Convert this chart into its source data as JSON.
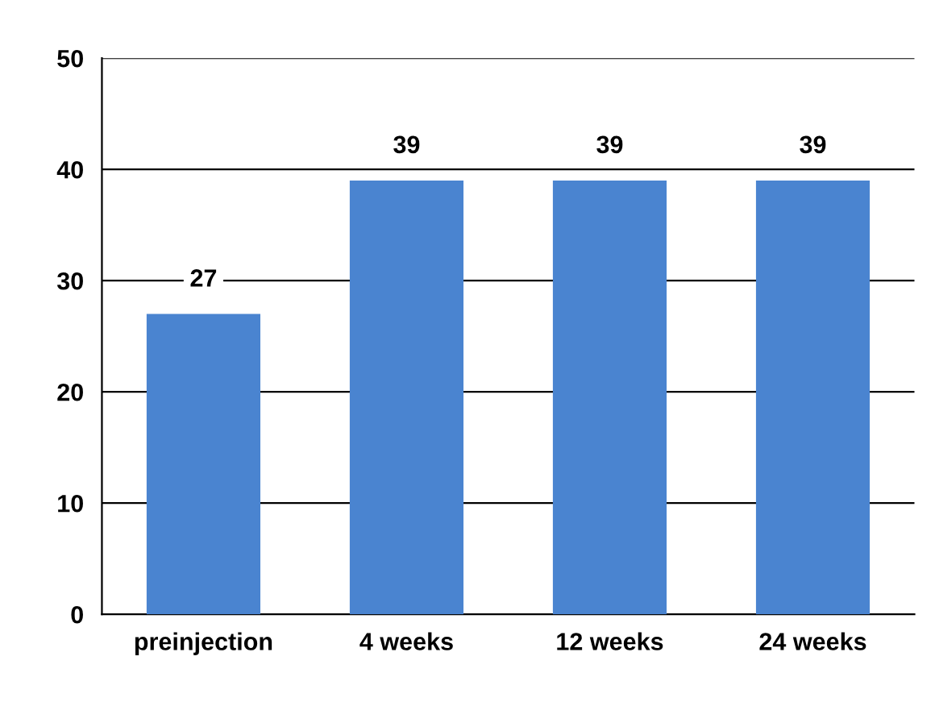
{
  "chart_data": {
    "type": "bar",
    "categories": [
      "preinjection",
      "4 weeks",
      "12 weeks",
      "24 weeks"
    ],
    "values": [
      27,
      39,
      39,
      39
    ],
    "color": "#4a84d0",
    "ylim": [
      0,
      50
    ],
    "yticks": [
      0,
      10,
      20,
      30,
      40,
      50
    ],
    "grid": "y",
    "data_labels": true
  }
}
